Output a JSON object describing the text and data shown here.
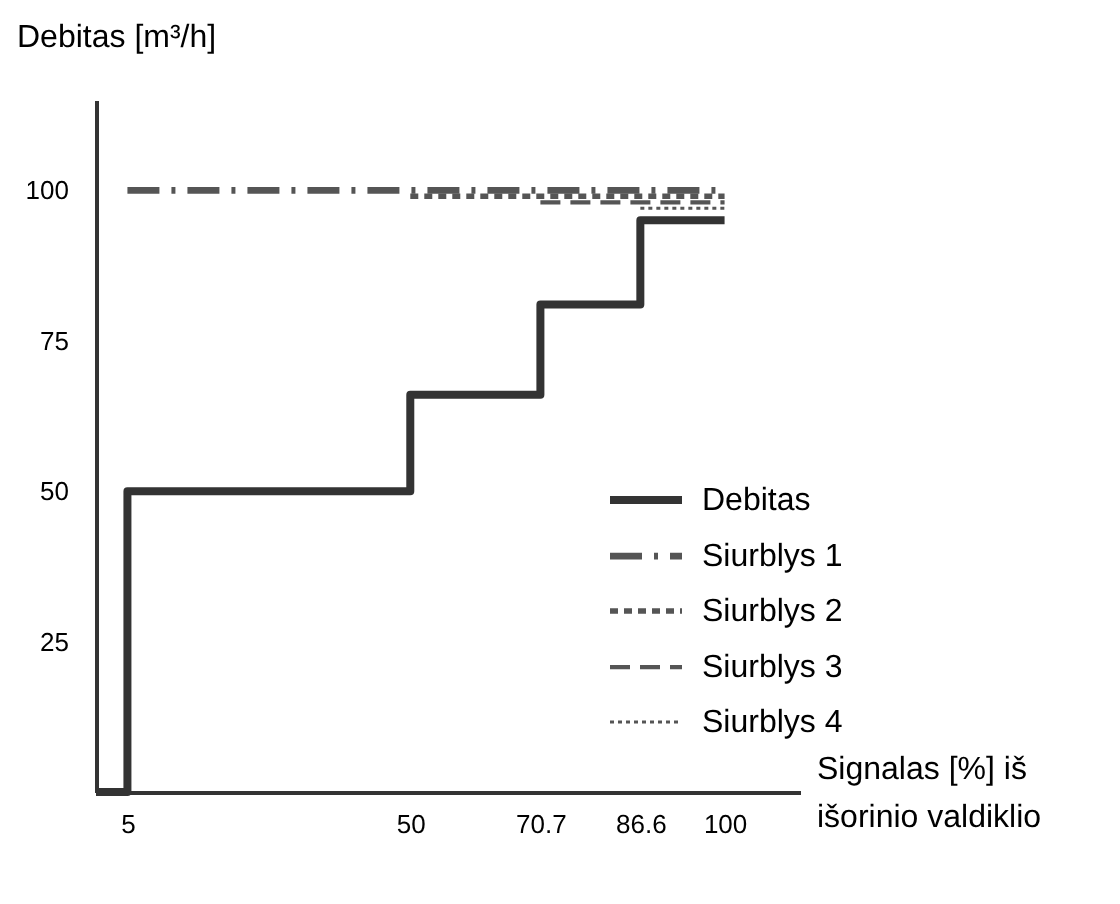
{
  "chart_data": {
    "type": "line",
    "xlabel": "Signalas [%] iš\nišorinio valdiklio",
    "ylabel": "Debitas [m³/h]",
    "xlim": [
      0,
      112
    ],
    "xticks": [
      5,
      50,
      70.7,
      86.6,
      100
    ],
    "ylim": [
      0,
      115
    ],
    "yticks": [
      25,
      50,
      75,
      100
    ],
    "grid": false,
    "legend": "right",
    "marker": "none",
    "series": [
      {
        "name": "Debitas",
        "type": "step",
        "color": "#333333",
        "x": [
          0,
          5,
          50,
          70.7,
          86.6,
          100
        ],
        "values": [
          0,
          50,
          66,
          81,
          95,
          95
        ]
      },
      {
        "name": "Siurblys 1",
        "color": "#555555",
        "line_style": "dashdot",
        "x": [
          5,
          100
        ],
        "values": [
          100,
          100
        ]
      },
      {
        "name": "Siurblys 2",
        "color": "#555555",
        "line_style": "dashed",
        "x": [
          50,
          100
        ],
        "values": [
          99,
          99
        ]
      },
      {
        "name": "Siurblys 3",
        "color": "#555555",
        "line_style": "longdash",
        "x": [
          70.7,
          100
        ],
        "values": [
          98,
          98
        ]
      },
      {
        "name": "Siurblys 4",
        "color": "#555555",
        "line_style": "dotted",
        "x": [
          86.6,
          100
        ],
        "values": [
          97,
          97
        ]
      }
    ]
  }
}
